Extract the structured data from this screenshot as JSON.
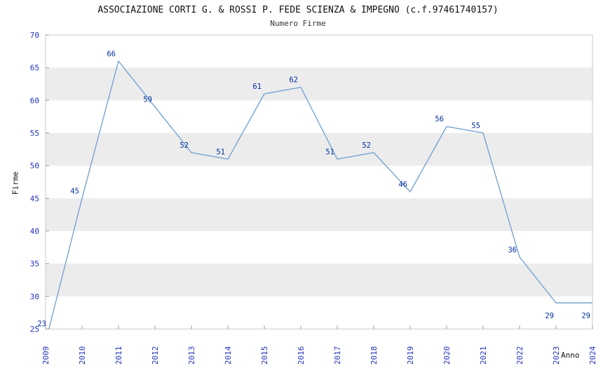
{
  "header": {
    "title": "ASSOCIAZIONE CORTI G. & ROSSI P. FEDE SCIENZA & IMPEGNO (c.f.97461740157)",
    "subtitle": "Numero Firme"
  },
  "chart_data": {
    "type": "line",
    "title": "ASSOCIAZIONE CORTI G. & ROSSI P. FEDE SCIENZA & IMPEGNO (c.f.97461740157)",
    "subtitle": "Numero Firme",
    "xlabel": "Anno",
    "ylabel": "Firme",
    "x": [
      2009,
      2010,
      2011,
      2012,
      2013,
      2014,
      2015,
      2016,
      2017,
      2018,
      2019,
      2020,
      2021,
      2022,
      2023,
      2024
    ],
    "values": [
      23,
      45,
      66,
      59,
      52,
      51,
      61,
      62,
      51,
      52,
      46,
      56,
      55,
      36,
      29,
      29
    ],
    "ylim": [
      25,
      70
    ],
    "ytick_step": 5,
    "grid": "horizontal-bands",
    "legend_position": "none",
    "line_color": "#6e9fd4",
    "point_label_color": "#002e9e",
    "tick_label_color": "#2233bb",
    "band_color": "#ececec",
    "border_color": "#c8c8c8"
  }
}
